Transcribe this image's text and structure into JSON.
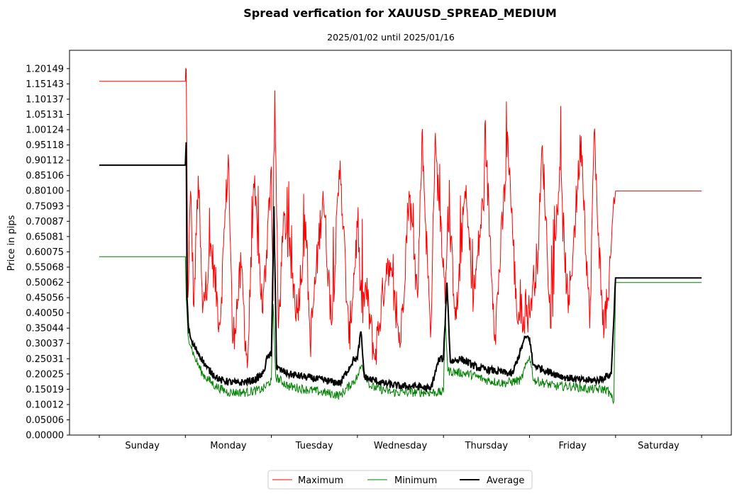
{
  "chart_data": {
    "type": "line",
    "title": "Spread verfication for XAUUSD_SPREAD_MEDIUM",
    "subtitle": "2025/01/02 until 2025/01/16",
    "ylabel": "Price in pips",
    "xlabel": "",
    "ylim": [
      0,
      1.2615
    ],
    "xlim": [
      -0.33,
      7.0
    ],
    "yticks": [
      "0.00000",
      "0.05006",
      "0.10012",
      "0.15019",
      "0.20025",
      "0.25031",
      "0.30037",
      "0.35044",
      "0.40050",
      "0.45056",
      "0.50062",
      "0.55068",
      "0.60075",
      "0.65081",
      "0.70087",
      "0.75093",
      "0.80100",
      "0.85106",
      "0.90112",
      "0.95118",
      "1.00124",
      "1.05131",
      "1.10137",
      "1.15143",
      "1.20149"
    ],
    "categories": [
      "Sunday",
      "Monday",
      "Tuesday",
      "Wednesday",
      "Thursday",
      "Friday",
      "Saturday"
    ],
    "category_separators": [
      0,
      1,
      2,
      3,
      4,
      5,
      6,
      7
    ],
    "grid": false,
    "legend": {
      "placement": "bottom-center",
      "entries": [
        "Maximum",
        "Minimum",
        "Average"
      ]
    },
    "series": [
      {
        "name": "Maximum",
        "color": "#ff0000",
        "width": 1,
        "points": [
          [
            0.0,
            1.16
          ],
          [
            1.0,
            1.16
          ],
          [
            1.01,
            1.2
          ],
          [
            1.03,
            0.45
          ],
          [
            1.06,
            0.8
          ],
          [
            1.1,
            0.42
          ],
          [
            1.15,
            0.85
          ],
          [
            1.2,
            0.4
          ],
          [
            1.3,
            0.62
          ],
          [
            1.4,
            0.36
          ],
          [
            1.5,
            0.92
          ],
          [
            1.55,
            0.3
          ],
          [
            1.65,
            0.55
          ],
          [
            1.72,
            0.22
          ],
          [
            1.8,
            0.81
          ],
          [
            1.9,
            0.4
          ],
          [
            2.0,
            0.88
          ],
          [
            2.02,
            0.44
          ],
          [
            2.04,
            1.13
          ],
          [
            2.08,
            0.35
          ],
          [
            2.15,
            0.72
          ],
          [
            2.3,
            0.4
          ],
          [
            2.4,
            0.7
          ],
          [
            2.45,
            0.3
          ],
          [
            2.6,
            0.8
          ],
          [
            2.7,
            0.36
          ],
          [
            2.8,
            0.9
          ],
          [
            2.9,
            0.3
          ],
          [
            3.0,
            0.68
          ],
          [
            3.05,
            0.4
          ],
          [
            3.1,
            0.48
          ],
          [
            3.2,
            0.25
          ],
          [
            3.35,
            0.58
          ],
          [
            3.5,
            0.3
          ],
          [
            3.6,
            0.8
          ],
          [
            3.7,
            0.45
          ],
          [
            3.75,
            0.99
          ],
          [
            3.85,
            0.32
          ],
          [
            3.9,
            0.95
          ],
          [
            4.0,
            0.58
          ],
          [
            4.02,
            0.43
          ],
          [
            4.05,
            0.75
          ],
          [
            4.15,
            0.38
          ],
          [
            4.25,
            0.8
          ],
          [
            4.35,
            0.45
          ],
          [
            4.5,
            0.88
          ],
          [
            4.6,
            0.33
          ],
          [
            4.75,
            0.97
          ],
          [
            4.85,
            0.4
          ],
          [
            5.0,
            0.4
          ],
          [
            5.02,
            0.45
          ],
          [
            5.1,
            0.6
          ],
          [
            5.15,
            0.95
          ],
          [
            5.25,
            0.35
          ],
          [
            5.35,
            0.88
          ],
          [
            5.45,
            0.4
          ],
          [
            5.6,
            0.98
          ],
          [
            5.7,
            0.35
          ],
          [
            5.75,
            0.99
          ],
          [
            5.85,
            0.36
          ],
          [
            5.92,
            0.44
          ],
          [
            5.98,
            0.78
          ],
          [
            6.0,
            0.8
          ],
          [
            7.0,
            0.8
          ]
        ]
      },
      {
        "name": "Minimum",
        "color": "#008000",
        "width": 1,
        "points": [
          [
            0.0,
            0.585
          ],
          [
            1.0,
            0.585
          ],
          [
            1.01,
            0.45
          ],
          [
            1.03,
            0.33
          ],
          [
            1.1,
            0.26
          ],
          [
            1.2,
            0.2
          ],
          [
            1.35,
            0.16
          ],
          [
            1.5,
            0.14
          ],
          [
            1.7,
            0.14
          ],
          [
            1.9,
            0.15
          ],
          [
            2.0,
            0.18
          ],
          [
            2.02,
            0.43
          ],
          [
            2.05,
            0.19
          ],
          [
            2.2,
            0.16
          ],
          [
            2.4,
            0.15
          ],
          [
            2.6,
            0.14
          ],
          [
            2.8,
            0.13
          ],
          [
            3.0,
            0.19
          ],
          [
            3.05,
            0.23
          ],
          [
            3.15,
            0.16
          ],
          [
            3.4,
            0.14
          ],
          [
            3.6,
            0.14
          ],
          [
            3.8,
            0.14
          ],
          [
            4.0,
            0.14
          ],
          [
            4.02,
            0.4
          ],
          [
            4.05,
            0.21
          ],
          [
            4.3,
            0.2
          ],
          [
            4.5,
            0.18
          ],
          [
            4.7,
            0.17
          ],
          [
            4.9,
            0.18
          ],
          [
            5.0,
            0.26
          ],
          [
            5.05,
            0.18
          ],
          [
            5.3,
            0.16
          ],
          [
            5.5,
            0.16
          ],
          [
            5.7,
            0.15
          ],
          [
            5.9,
            0.15
          ],
          [
            5.98,
            0.11
          ],
          [
            6.0,
            0.5
          ],
          [
            7.0,
            0.5
          ]
        ]
      },
      {
        "name": "Average",
        "color": "#000000",
        "width": 2,
        "points": [
          [
            0.0,
            0.885
          ],
          [
            1.0,
            0.885
          ],
          [
            1.01,
            0.96
          ],
          [
            1.02,
            0.45
          ],
          [
            1.04,
            0.34
          ],
          [
            1.08,
            0.3
          ],
          [
            1.15,
            0.27
          ],
          [
            1.25,
            0.22
          ],
          [
            1.4,
            0.18
          ],
          [
            1.6,
            0.17
          ],
          [
            1.8,
            0.18
          ],
          [
            1.9,
            0.2
          ],
          [
            1.96,
            0.26
          ],
          [
            2.0,
            0.26
          ],
          [
            2.03,
            0.75
          ],
          [
            2.06,
            0.22
          ],
          [
            2.2,
            0.2
          ],
          [
            2.4,
            0.19
          ],
          [
            2.6,
            0.18
          ],
          [
            2.8,
            0.17
          ],
          [
            2.96,
            0.25
          ],
          [
            3.0,
            0.25
          ],
          [
            3.04,
            0.34
          ],
          [
            3.08,
            0.19
          ],
          [
            3.3,
            0.17
          ],
          [
            3.5,
            0.16
          ],
          [
            3.7,
            0.16
          ],
          [
            3.85,
            0.15
          ],
          [
            3.95,
            0.25
          ],
          [
            4.0,
            0.25
          ],
          [
            4.04,
            0.5
          ],
          [
            4.08,
            0.24
          ],
          [
            4.2,
            0.25
          ],
          [
            4.4,
            0.22
          ],
          [
            4.6,
            0.21
          ],
          [
            4.8,
            0.2
          ],
          [
            4.95,
            0.32
          ],
          [
            5.0,
            0.32
          ],
          [
            5.04,
            0.23
          ],
          [
            5.2,
            0.21
          ],
          [
            5.4,
            0.19
          ],
          [
            5.6,
            0.18
          ],
          [
            5.8,
            0.18
          ],
          [
            5.95,
            0.2
          ],
          [
            6.0,
            0.515
          ],
          [
            7.0,
            0.515
          ]
        ]
      }
    ],
    "noise": {
      "Maximum": 0.07,
      "Minimum": 0.015,
      "Average": 0.012
    }
  }
}
